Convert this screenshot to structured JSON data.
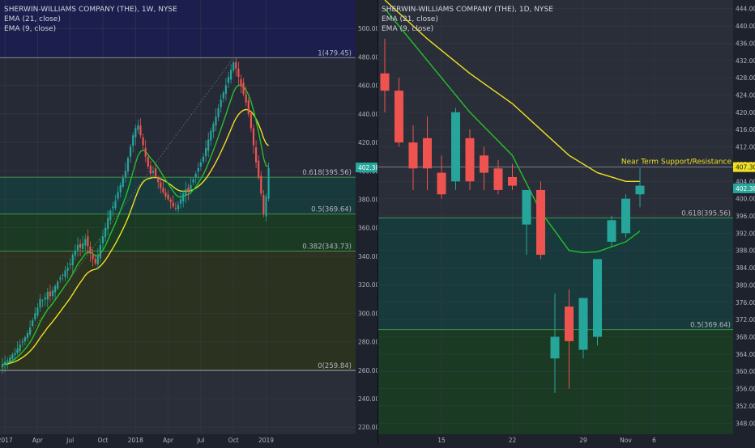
{
  "chart_data": [
    {
      "type": "candlestick",
      "title": "SHERWIN-WILLIAMS COMPANY (THE), 1W, NYSE",
      "indicators": [
        "EMA (21, close)",
        "EMA (9, close)"
      ],
      "ylim": [
        215,
        520
      ],
      "y_ticks": [
        220,
        240,
        260,
        280,
        300,
        320,
        340,
        360,
        380,
        400,
        420,
        440,
        460,
        480,
        500
      ],
      "price_label": "402.38",
      "x_ticks": [
        {
          "label": "2017",
          "i": 1
        },
        {
          "label": "Apr",
          "i": 14
        },
        {
          "label": "Jul",
          "i": 27
        },
        {
          "label": "Oct",
          "i": 40
        },
        {
          "label": "2018",
          "i": 53
        },
        {
          "label": "Apr",
          "i": 66
        },
        {
          "label": "Jul",
          "i": 79
        },
        {
          "label": "Oct",
          "i": 92
        },
        {
          "label": "2019",
          "i": 105
        }
      ],
      "fib_levels": [
        {
          "label": "1(479.45)",
          "value": 479.45
        },
        {
          "label": "0.618(395.56)",
          "value": 395.56
        },
        {
          "label": "0.5(369.64)",
          "value": 369.64
        },
        {
          "label": "0.382(343.73)",
          "value": 343.73
        },
        {
          "label": "0(259.84)",
          "value": 259.84
        }
      ],
      "colors": {
        "up": "#26a69a",
        "down": "#ef5350",
        "ema21": "#22c22a",
        "ema9": "#f0e020"
      },
      "closes": [
        264,
        266,
        267,
        269,
        271,
        272,
        275,
        278,
        280,
        283,
        286,
        290,
        295,
        300,
        304,
        310,
        309,
        311,
        315,
        312,
        316,
        319,
        322,
        325,
        327,
        330,
        332,
        335,
        341,
        344,
        348,
        346,
        349,
        352,
        347,
        342,
        338,
        335,
        340,
        348,
        354,
        360,
        367,
        372,
        375,
        379,
        385,
        390,
        395,
        400,
        409,
        417,
        425,
        430,
        432,
        425,
        418,
        410,
        403,
        398,
        400,
        396,
        392,
        388,
        385,
        382,
        380,
        378,
        375,
        374,
        376,
        380,
        384,
        387,
        385,
        390,
        394,
        398,
        402,
        406,
        410,
        416,
        422,
        428,
        433,
        438,
        444,
        450,
        455,
        460,
        466,
        471,
        476,
        472,
        466,
        460,
        454,
        448,
        440,
        430,
        418,
        406,
        395,
        384,
        370,
        382,
        402
      ]
    },
    {
      "type": "candlestick",
      "title": "SHERWIN-WILLIAMS COMPANY (THE), 1D, NYSE",
      "indicators": [
        "EMA (21, close)",
        "EMA (9, close)"
      ],
      "ylim": [
        343,
        446
      ],
      "y_ticks": [
        344,
        348,
        352,
        356,
        360,
        364,
        368,
        372,
        376,
        380,
        384,
        388,
        392,
        396,
        400,
        404,
        408,
        412,
        416,
        420,
        424,
        428,
        432,
        436,
        440,
        444
      ],
      "price_labels": [
        "407.30",
        "402.38"
      ],
      "x_labels": [
        {
          "label": "15",
          "i": 4
        },
        {
          "label": "22",
          "i": 9
        },
        {
          "label": "29",
          "i": 14
        },
        {
          "label": "Nov",
          "i": 17
        },
        {
          "label": "6",
          "i": 19
        }
      ],
      "fib_levels": [
        {
          "label": "0.618(395.56)",
          "value": 395.56
        },
        {
          "label": "0.5(369.64)",
          "value": 369.64
        }
      ],
      "resistance": {
        "label": "Near Term Support/Resistance",
        "value": 407.3
      },
      "candles": [
        {
          "o": 429,
          "h": 437,
          "l": 420,
          "c": 425
        },
        {
          "o": 425,
          "h": 428,
          "l": 412,
          "c": 413
        },
        {
          "o": 413,
          "h": 417,
          "l": 402,
          "c": 407
        },
        {
          "o": 414,
          "h": 419,
          "l": 402,
          "c": 407
        },
        {
          "o": 406,
          "h": 410,
          "l": 400,
          "c": 401
        },
        {
          "o": 404,
          "h": 421,
          "l": 402,
          "c": 420
        },
        {
          "o": 414,
          "h": 416,
          "l": 402,
          "c": 404
        },
        {
          "o": 410,
          "h": 412,
          "l": 402,
          "c": 406
        },
        {
          "o": 407,
          "h": 409,
          "l": 401,
          "c": 402
        },
        {
          "o": 405,
          "h": 408,
          "l": 402,
          "c": 403
        },
        {
          "o": 394,
          "h": 402,
          "l": 387,
          "c": 402
        },
        {
          "o": 402,
          "h": 404,
          "l": 386,
          "c": 387
        },
        {
          "o": 363,
          "h": 378,
          "l": 355,
          "c": 368
        },
        {
          "o": 375,
          "h": 379,
          "l": 356,
          "c": 367
        },
        {
          "o": 365,
          "h": 377,
          "l": 363,
          "c": 377
        },
        {
          "o": 368,
          "h": 386,
          "l": 366,
          "c": 386
        },
        {
          "o": 390,
          "h": 396,
          "l": 389,
          "c": 395
        },
        {
          "o": 392,
          "h": 401,
          "l": 391,
          "c": 400
        },
        {
          "o": 401,
          "h": 407,
          "l": 398,
          "c": 403
        }
      ],
      "ema9": [
        null,
        null,
        null,
        null,
        null,
        null,
        null,
        null,
        null,
        null,
        null,
        null,
        null,
        null,
        387.5,
        386.6,
        387.3,
        389.1,
        392.5
      ],
      "ema21": [
        null,
        null,
        null,
        null,
        null,
        null,
        null,
        null,
        null,
        null,
        null,
        null,
        null,
        null,
        null,
        null,
        null,
        null,
        null
      ]
    }
  ]
}
